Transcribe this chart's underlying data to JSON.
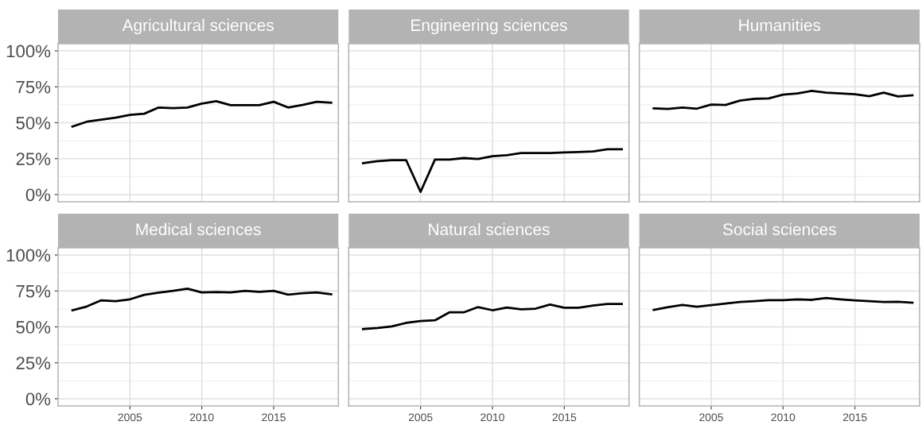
{
  "chart_data": [
    {
      "type": "line",
      "title": "Agricultural sciences",
      "x": [
        2001,
        2002,
        2003,
        2004,
        2005,
        2006,
        2007,
        2008,
        2009,
        2010,
        2011,
        2012,
        2013,
        2014,
        2015,
        2016,
        2017,
        2018,
        2019
      ],
      "series": [
        {
          "color": "#000000",
          "values": [
            47.4,
            50.7,
            52.2,
            53.5,
            55.4,
            56.3,
            60.6,
            60.2,
            60.6,
            63.3,
            65,
            62.2,
            62.2,
            62.2,
            64.6,
            60.6,
            62.4,
            64.6,
            63.9
          ]
        }
      ],
      "xlim": [
        2000,
        2019.5
      ],
      "xticks": [
        2005,
        2010,
        2015
      ],
      "ylim": [
        -5,
        105
      ],
      "yticks": [
        {
          "value": 0,
          "label": "0%"
        },
        {
          "value": 25,
          "label": "25%"
        },
        {
          "value": 50,
          "label": "50%"
        },
        {
          "value": 75,
          "label": "75%"
        },
        {
          "value": 100,
          "label": "100%"
        }
      ],
      "tick_labels": "y",
      "grid": true,
      "legend": false
    },
    {
      "type": "line",
      "title": "Engineering sciences",
      "x": [
        2001,
        2002,
        2003,
        2004,
        2005,
        2006,
        2007,
        2008,
        2009,
        2010,
        2011,
        2012,
        2013,
        2014,
        2015,
        2016,
        2017,
        2018,
        2019
      ],
      "series": [
        {
          "color": "#000000",
          "values": [
            21.9,
            23.3,
            23.9,
            23.9,
            1.9,
            24.4,
            24.4,
            25.4,
            24.8,
            26.7,
            27.4,
            28.9,
            28.9,
            28.9,
            29.3,
            29.6,
            30,
            31.5,
            31.5
          ]
        }
      ],
      "xlim": [
        2000,
        2019.5
      ],
      "xticks": [
        2005,
        2010,
        2015
      ],
      "ylim": [
        -5,
        105
      ],
      "yticks": [
        0,
        25,
        50,
        75,
        100
      ],
      "tick_labels": false,
      "grid": true,
      "legend": false
    },
    {
      "type": "line",
      "title": "Humanities",
      "x": [
        2001,
        2002,
        2003,
        2004,
        2005,
        2006,
        2007,
        2008,
        2009,
        2010,
        2011,
        2012,
        2013,
        2014,
        2015,
        2016,
        2017,
        2018,
        2019
      ],
      "series": [
        {
          "color": "#000000",
          "values": [
            60,
            59.6,
            60.6,
            59.8,
            62.6,
            62.4,
            65.4,
            66.7,
            66.9,
            69.6,
            70.4,
            72.2,
            70.9,
            70.4,
            69.8,
            68.5,
            70.9,
            68.3,
            69.1
          ]
        }
      ],
      "xlim": [
        2000,
        2019.5
      ],
      "xticks": [
        2005,
        2010,
        2015
      ],
      "ylim": [
        -5,
        105
      ],
      "yticks": [
        0,
        25,
        50,
        75,
        100
      ],
      "tick_labels": false,
      "grid": true,
      "legend": false
    },
    {
      "type": "line",
      "title": "Medical sciences",
      "x": [
        2001,
        2002,
        2003,
        2004,
        2005,
        2006,
        2007,
        2008,
        2009,
        2010,
        2011,
        2012,
        2013,
        2014,
        2015,
        2016,
        2017,
        2018,
        2019
      ],
      "series": [
        {
          "color": "#000000",
          "values": [
            61.6,
            64.2,
            68.5,
            67.9,
            69.2,
            72.3,
            73.8,
            75.1,
            76.6,
            74,
            74.2,
            74,
            75.1,
            74.4,
            75.1,
            72.5,
            73.4,
            74,
            72.7
          ]
        }
      ],
      "xlim": [
        2000,
        2019.5
      ],
      "xticks": [
        2005,
        2010,
        2015
      ],
      "ylim": [
        -5,
        105
      ],
      "yticks": [
        {
          "value": 0,
          "label": "0%"
        },
        {
          "value": 25,
          "label": "25%"
        },
        {
          "value": 50,
          "label": "50%"
        },
        {
          "value": 75,
          "label": "75%"
        },
        {
          "value": 100,
          "label": "100%"
        }
      ],
      "grid": true,
      "legend": false
    },
    {
      "type": "line",
      "title": "Natural sciences",
      "x": [
        2001,
        2002,
        2003,
        2004,
        2005,
        2006,
        2007,
        2008,
        2009,
        2010,
        2011,
        2012,
        2013,
        2014,
        2015,
        2016,
        2017,
        2018,
        2019
      ],
      "series": [
        {
          "color": "#000000",
          "values": [
            48.5,
            49.3,
            50.4,
            52.8,
            54.1,
            54.6,
            60.1,
            60.1,
            63.8,
            61.6,
            63.5,
            62.2,
            62.7,
            65.5,
            63.3,
            63.3,
            64.8,
            65.9,
            65.9
          ]
        }
      ],
      "xlim": [
        2000,
        2019.5
      ],
      "xticks": [
        2005,
        2010,
        2015
      ],
      "ylim": [
        -5,
        105
      ],
      "yticks": [
        0,
        25,
        50,
        75,
        100
      ],
      "tick_labels": "x",
      "grid": true,
      "legend": false
    },
    {
      "type": "line",
      "title": "Social sciences",
      "x": [
        2001,
        2002,
        2003,
        2004,
        2005,
        2006,
        2007,
        2008,
        2009,
        2010,
        2011,
        2012,
        2013,
        2014,
        2015,
        2016,
        2017,
        2018,
        2019
      ],
      "series": [
        {
          "color": "#000000",
          "values": [
            61.8,
            63.7,
            65.3,
            64,
            65.1,
            66.2,
            67.3,
            67.9,
            68.6,
            68.6,
            69.2,
            68.8,
            70.1,
            69.2,
            68.5,
            67.9,
            67.3,
            67.5,
            66.8
          ]
        }
      ],
      "xlim": [
        2000,
        2019.5
      ],
      "xticks": [
        2005,
        2010,
        2015
      ],
      "ylim": [
        -5,
        105
      ],
      "yticks": [
        0,
        25,
        50,
        75,
        100
      ],
      "tick_labels": "x",
      "grid": true,
      "legend": false
    }
  ]
}
